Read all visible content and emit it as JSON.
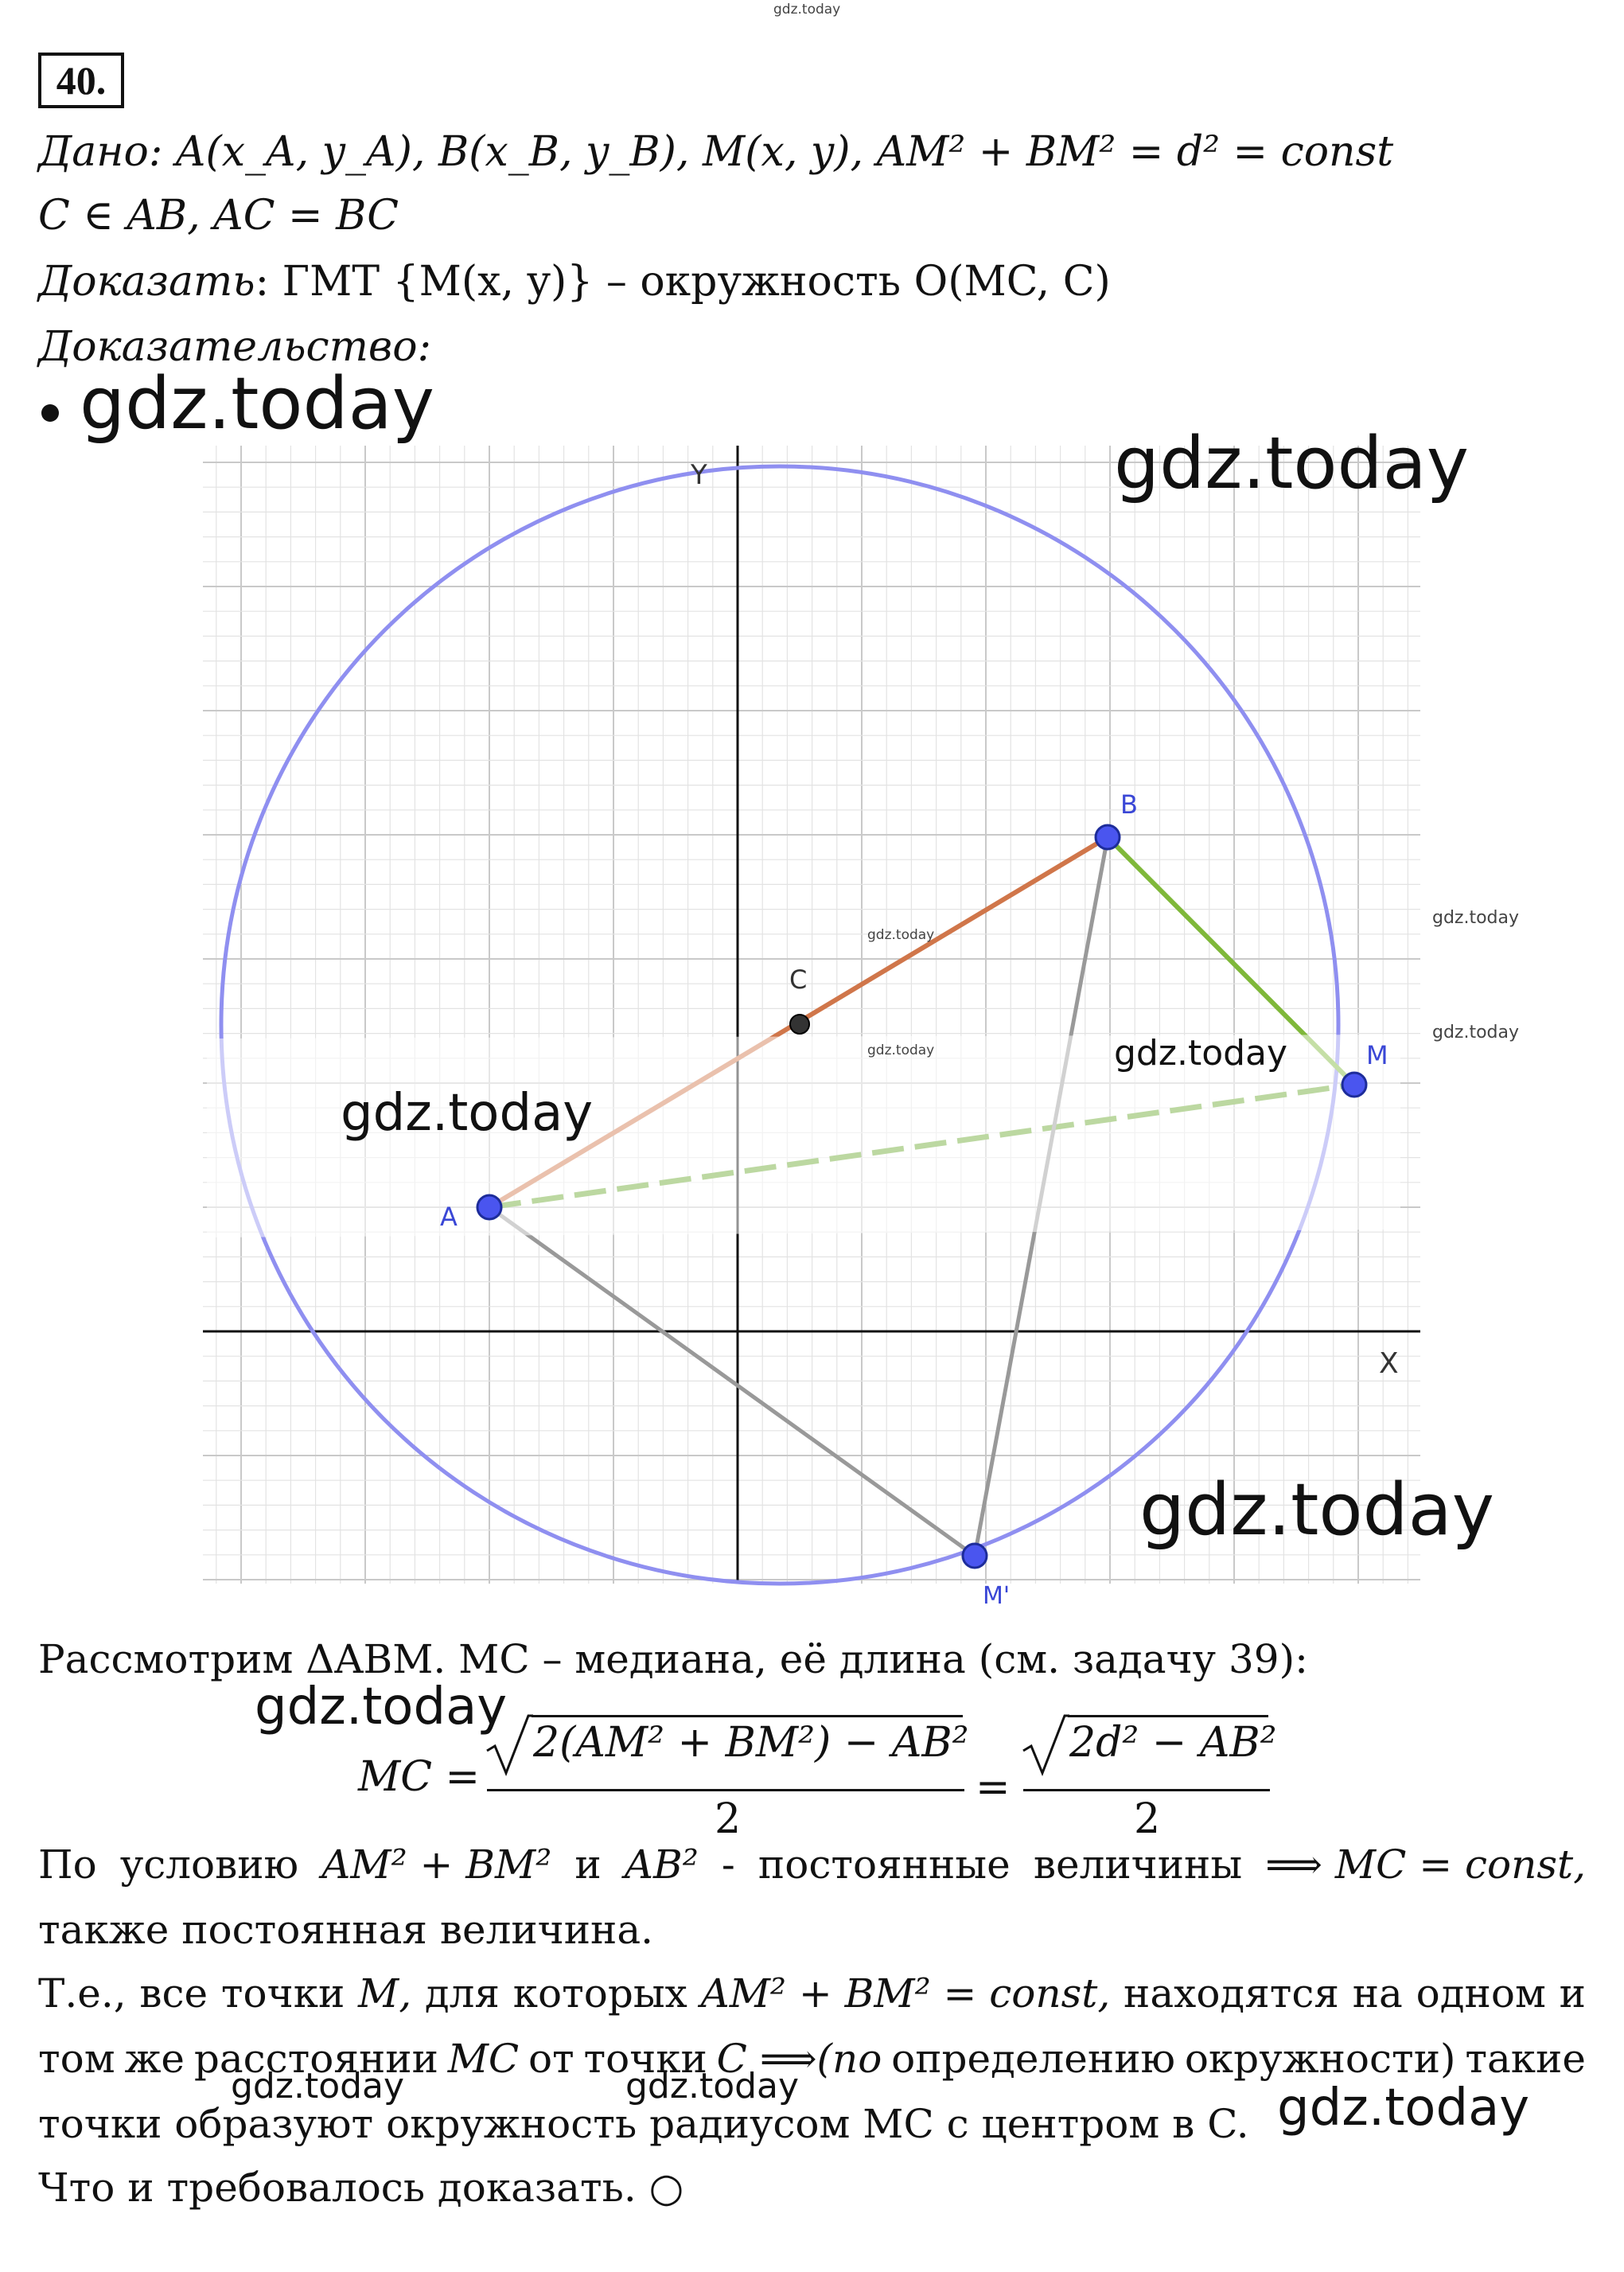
{
  "watermark": "gdz.today",
  "problem_number": "40.",
  "given": {
    "label": "Дано",
    "line1": ": A(x_A, y_A), B(x_B, y_B), M(x, y),  AM² + BM² = d² = const",
    "line2": "C ∈ AB, AC = BC"
  },
  "prove": {
    "label": "Доказать",
    "text": ": ГМТ {M(x, y)} – окружность O(MC, C)"
  },
  "proof_label": "Доказательство:",
  "figure": {
    "axis_x": "X",
    "axis_y": "Y",
    "points": [
      {
        "label": "A"
      },
      {
        "label": "B"
      },
      {
        "label": "C"
      },
      {
        "label": "M"
      },
      {
        "label": "M'"
      }
    ],
    "colors": {
      "circle": "#8f8ff0",
      "point": "#4a55ef",
      "segment_AB": "#d0764a",
      "segment_BM": "#7fb83a",
      "segment_AM": "#6aa830",
      "segment_gray": "#999999",
      "grid_minor": "#e3e3e3",
      "grid_major": "#c9c9c9"
    }
  },
  "text": {
    "consider": "Рассмотрим ΔABM. MC – медиана, её длина (см. задачу 39):",
    "formula_lhs": "MC =",
    "formula_num1": "2(AM² + BM²) − AB²",
    "formula_den1": "2",
    "formula_eq": "=",
    "formula_num2": "2d² − AB²",
    "formula_den2": "2",
    "cond_words": [
      "По",
      "условию",
      "AM² + BM²",
      "и",
      "AB²",
      "-",
      "постоянные",
      "величины",
      "⟹ MC = const,"
    ],
    "cond_line2": "также постоянная величина.",
    "te_words": [
      "Т.е.,",
      "все",
      "точки",
      "M,",
      "для",
      "которых",
      "AM² + BM² = const,",
      "находятся",
      "на",
      "одном",
      "и"
    ],
    "same_words": [
      "том",
      "же",
      "расстоянии",
      "MC",
      "от",
      "точки",
      "C ⟹(по",
      "определению",
      "окружности)",
      "такие"
    ],
    "te_line3": "точки образуют окружность радиусом MC с центром в C.",
    "qed": "Что и требовалось доказать. ○"
  }
}
